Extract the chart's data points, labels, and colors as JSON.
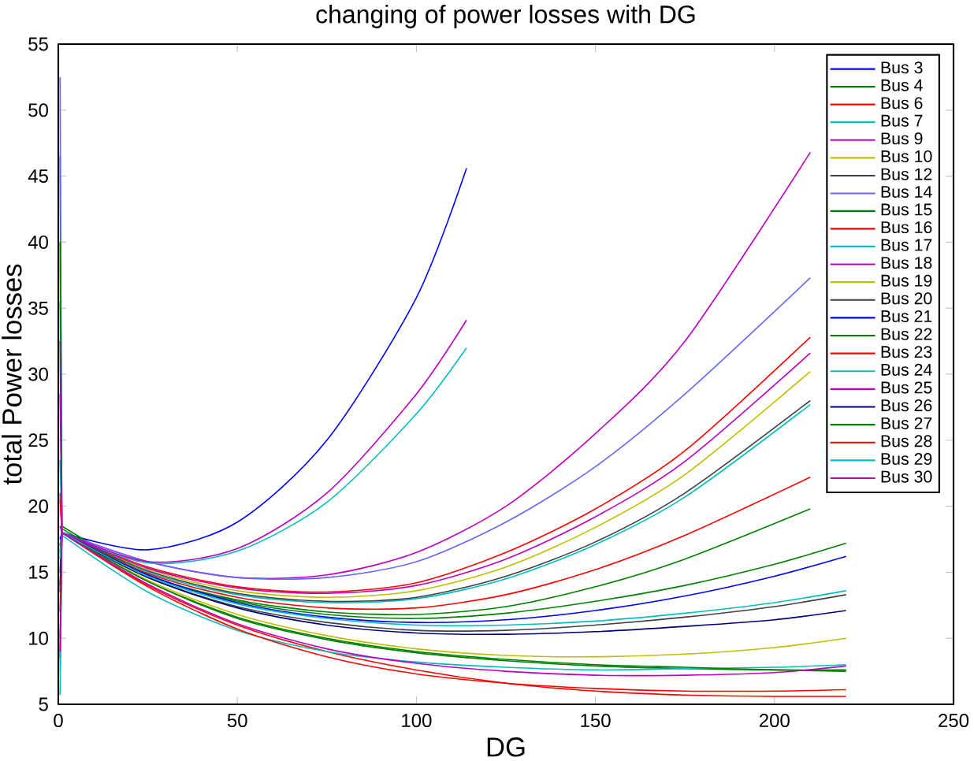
{
  "chart_data": {
    "type": "line",
    "title": "changing of power losses with DG",
    "xlabel": "DG",
    "ylabel": "total Power losses",
    "xlim": [
      0,
      250
    ],
    "ylim": [
      5,
      55
    ],
    "xticks": [
      0,
      50,
      100,
      150,
      200,
      250
    ],
    "yticks": [
      5,
      10,
      15,
      20,
      25,
      30,
      35,
      40,
      45,
      50,
      55
    ],
    "legend": "top right",
    "grid": false,
    "series": [
      {
        "name": "Bus 3",
        "color": "#0000ff",
        "x": [
          0.5,
          1,
          25,
          50,
          75,
          100,
          114
        ],
        "values": [
          13.5,
          18,
          16.7,
          18.8,
          25.0,
          35.8,
          45.6
        ]
      },
      {
        "name": "Bus 4",
        "color": "#008000",
        "x": [
          0.5,
          1,
          25,
          50,
          75,
          100,
          125,
          150,
          175,
          210
        ],
        "values": [
          46.5,
          18.5,
          14.8,
          12.9,
          12.0,
          11.8,
          12.4,
          13.9,
          16.0,
          19.8
        ]
      },
      {
        "name": "Bus 6",
        "color": "#ff0000",
        "x": [
          0.5,
          1,
          25,
          50,
          75,
          100,
          125,
          150,
          175,
          210
        ],
        "values": [
          21,
          18,
          15.4,
          13.9,
          13.5,
          14.2,
          16.5,
          19.8,
          24.2,
          32.8
        ]
      },
      {
        "name": "Bus 7",
        "color": "#00bfbf",
        "x": [
          0.5,
          1,
          25,
          50,
          75,
          100,
          125,
          150,
          175,
          210
        ],
        "values": [
          35.5,
          18,
          15.0,
          13.3,
          12.7,
          13.0,
          14.5,
          17.1,
          20.7,
          27.7
        ]
      },
      {
        "name": "Bus 9",
        "color": "#bf00bf",
        "x": [
          0.5,
          1,
          25,
          50,
          75,
          100,
          125,
          150,
          175,
          210
        ],
        "values": [
          32.5,
          18,
          15.8,
          14.6,
          14.8,
          16.5,
          20.0,
          25.5,
          32.5,
          46.8
        ]
      },
      {
        "name": "Bus 10",
        "color": "#bfbf00",
        "x": [
          0.5,
          1,
          25,
          50,
          75,
          100,
          125,
          150,
          175,
          210
        ],
        "values": [
          8,
          18,
          15.2,
          13.6,
          13.1,
          13.6,
          15.4,
          18.4,
          22.4,
          30.2
        ]
      },
      {
        "name": "Bus 12",
        "color": "#404040",
        "x": [
          0.5,
          1,
          25,
          50,
          75,
          100,
          125,
          150,
          175,
          210
        ],
        "values": [
          17,
          18,
          15.1,
          13.4,
          12.8,
          13.1,
          14.7,
          17.3,
          21.0,
          28.0
        ]
      },
      {
        "name": "Bus 14",
        "color": "#6666ff",
        "x": [
          0.5,
          1,
          25,
          50,
          75,
          100,
          125,
          150,
          175,
          210
        ],
        "values": [
          52.5,
          18,
          15.8,
          14.6,
          14.6,
          15.8,
          18.8,
          23.0,
          28.5,
          37.3
        ]
      },
      {
        "name": "Bus 15",
        "color": "#008000",
        "x": [
          0.5,
          1,
          25,
          50,
          75,
          100,
          125,
          150,
          175,
          200,
          220
        ],
        "values": [
          40,
          18.3,
          14.8,
          12.8,
          11.8,
          11.5,
          11.9,
          12.8,
          14.0,
          15.6,
          17.2
        ]
      },
      {
        "name": "Bus 16",
        "color": "#ff0000",
        "x": [
          0.5,
          1,
          25,
          50,
          75,
          100,
          125,
          150,
          175,
          210
        ],
        "values": [
          20.5,
          18,
          14.9,
          13.1,
          12.3,
          12.3,
          13.3,
          15.2,
          17.8,
          22.2
        ]
      },
      {
        "name": "Bus 17",
        "color": "#00bfbf",
        "x": [
          0.5,
          1,
          25,
          50,
          75,
          100,
          114
        ],
        "values": [
          23.5,
          18,
          15.7,
          16.6,
          20.3,
          27.0,
          32.0
        ]
      },
      {
        "name": "Bus 18",
        "color": "#bf00bf",
        "x": [
          0.5,
          1,
          25,
          50,
          75,
          100,
          114
        ],
        "values": [
          28.5,
          18,
          15.8,
          16.8,
          21.0,
          28.5,
          34.1
        ]
      },
      {
        "name": "Bus 19",
        "color": "#bfbf00",
        "x": [
          0.5,
          1,
          25,
          50,
          75,
          100,
          125,
          150,
          175,
          200,
          220
        ],
        "values": [
          7.5,
          18,
          14.4,
          11.8,
          10.2,
          9.2,
          8.7,
          8.6,
          8.8,
          9.3,
          10.0
        ]
      },
      {
        "name": "Bus 20",
        "color": "#404040",
        "x": [
          0.5,
          1,
          25,
          50,
          75,
          100,
          125,
          150,
          175,
          200,
          220
        ],
        "values": [
          15,
          18,
          14.6,
          12.4,
          11.2,
          10.6,
          10.6,
          11.0,
          11.6,
          12.4,
          13.3
        ]
      },
      {
        "name": "Bus 21",
        "color": "#0000ff",
        "x": [
          0.5,
          1,
          25,
          50,
          75,
          100,
          125,
          150,
          175,
          200,
          220
        ],
        "values": [
          17.5,
          18,
          14.8,
          12.7,
          11.6,
          11.2,
          11.4,
          12.1,
          13.2,
          14.7,
          16.2
        ]
      },
      {
        "name": "Bus 22",
        "color": "#008000",
        "x": [
          0.5,
          1,
          25,
          50,
          75,
          100,
          125,
          150,
          175,
          200,
          220
        ],
        "values": [
          16.5,
          18,
          14.3,
          11.5,
          9.9,
          8.9,
          8.3,
          7.9,
          7.7,
          7.6,
          7.6
        ]
      },
      {
        "name": "Bus 23",
        "color": "#ff0000",
        "x": [
          0.5,
          1,
          25,
          50,
          75,
          100,
          125,
          150,
          175,
          200,
          220
        ],
        "values": [
          8.5,
          18,
          14.0,
          11.0,
          9.0,
          7.6,
          6.6,
          6.0,
          5.7,
          5.6,
          5.6
        ]
      },
      {
        "name": "Bus 24",
        "color": "#00bfbf",
        "x": [
          0.5,
          1,
          25,
          50,
          75,
          100,
          125,
          150,
          175,
          200,
          220
        ],
        "values": [
          5.7,
          17.8,
          13.5,
          10.6,
          9.0,
          8.2,
          7.8,
          7.6,
          7.7,
          7.8,
          8.0
        ]
      },
      {
        "name": "Bus 25",
        "color": "#bf00bf",
        "x": [
          0.5,
          1,
          25,
          50,
          75,
          100,
          125,
          150,
          175,
          210
        ],
        "values": [
          18.5,
          18,
          15.3,
          13.8,
          13.4,
          14.0,
          16.0,
          19.2,
          23.4,
          31.6
        ]
      },
      {
        "name": "Bus 26",
        "color": "#000080",
        "x": [
          0.5,
          1,
          25,
          50,
          75,
          100,
          125,
          150,
          175,
          200,
          220
        ],
        "values": [
          14,
          18,
          14.6,
          12.3,
          11.0,
          10.4,
          10.3,
          10.5,
          10.9,
          11.4,
          12.1
        ]
      },
      {
        "name": "Bus 27",
        "color": "#008000",
        "x": [
          0.5,
          1,
          25,
          50,
          75,
          100,
          125,
          150,
          175,
          200,
          220
        ],
        "values": [
          12,
          18,
          14.3,
          11.6,
          10.0,
          9.0,
          8.4,
          8.0,
          7.8,
          7.6,
          7.5
        ]
      },
      {
        "name": "Bus 28",
        "color": "#ff0000",
        "x": [
          0.5,
          1,
          25,
          50,
          75,
          100,
          125,
          150,
          175,
          200,
          220
        ],
        "values": [
          10,
          18,
          13.9,
          10.7,
          8.6,
          7.3,
          6.6,
          6.2,
          6.0,
          6.0,
          6.1
        ]
      },
      {
        "name": "Bus 29",
        "color": "#00bfbf",
        "x": [
          0.5,
          1,
          25,
          50,
          75,
          100,
          125,
          150,
          175,
          200,
          220
        ],
        "values": [
          16,
          18,
          14.7,
          12.6,
          11.5,
          11.0,
          11.0,
          11.3,
          11.9,
          12.7,
          13.6
        ]
      },
      {
        "name": "Bus 30",
        "color": "#bf00bf",
        "x": [
          0.5,
          1,
          25,
          50,
          75,
          100,
          125,
          150,
          175,
          200,
          220
        ],
        "values": [
          9,
          18,
          14.1,
          11.1,
          9.2,
          8.1,
          7.5,
          7.2,
          7.2,
          7.4,
          7.9
        ]
      }
    ]
  }
}
